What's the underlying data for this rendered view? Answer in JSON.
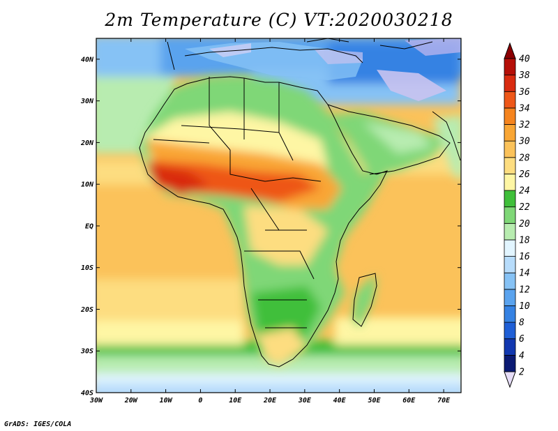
{
  "title": "2m Temperature (C) VT:2020030218",
  "credit": "GrADS: IGES/COLA",
  "map": {
    "lon_range": [
      -30,
      75
    ],
    "lat_range": [
      -40,
      45
    ],
    "lat_ticks": [
      "40N",
      "30N",
      "20N",
      "10N",
      "EQ",
      "10S",
      "20S",
      "30S",
      "40S"
    ],
    "lon_ticks": [
      "30W",
      "20W",
      "10W",
      "0",
      "10E",
      "20E",
      "30E",
      "40E",
      "50E",
      "60E",
      "70E"
    ]
  },
  "colorbar": {
    "levels": [
      "2",
      "4",
      "6",
      "8",
      "10",
      "12",
      "14",
      "16",
      "18",
      "20",
      "22",
      "24",
      "26",
      "28",
      "30",
      "32",
      "34",
      "36",
      "38",
      "40"
    ],
    "colors": [
      "#e6ddf7",
      "#0b1a73",
      "#1238b0",
      "#1f5fd6",
      "#3582e3",
      "#5aa3ee",
      "#86c2f5",
      "#b7dcfb",
      "#e2f5ff",
      "#b8ecb0",
      "#7fd777",
      "#3fbf3a",
      "#fef6a4",
      "#fddd80",
      "#fbc25a",
      "#f9a634",
      "#f5841e",
      "#ee5718",
      "#d92b10",
      "#b50f08",
      "#8c0003"
    ]
  }
}
